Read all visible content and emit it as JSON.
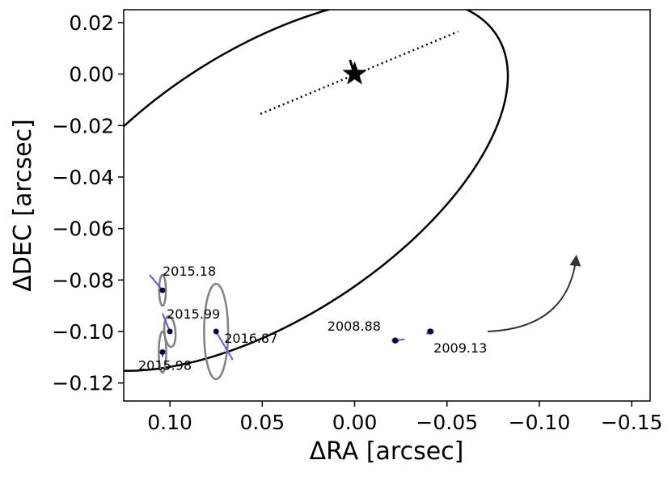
{
  "chart_data": {
    "type": "scatter",
    "xlabel": "ΔRA [arcsec]",
    "ylabel": "ΔDEC [arcsec]",
    "xlim": [
      0.125,
      -0.16
    ],
    "ylim": [
      -0.127,
      0.025
    ],
    "xticks": [
      0.1,
      0.05,
      0.0,
      -0.05,
      -0.1,
      -0.15
    ],
    "xtick_labels": [
      "0.10",
      "0.05",
      "0.00",
      "−0.05",
      "−0.10",
      "−0.15"
    ],
    "yticks": [
      0.02,
      0.0,
      -0.02,
      -0.04,
      -0.06,
      -0.08,
      -0.1,
      -0.12
    ],
    "ytick_labels": [
      "0.02",
      "0.00",
      "−0.02",
      "−0.04",
      "−0.06",
      "−0.08",
      "−0.10",
      "−0.12"
    ],
    "grid": false,
    "star": {
      "x": 0.0,
      "y": 0.0
    },
    "orbit": {
      "center_x": -0.0475,
      "center_y": -0.0428,
      "semi_major": 0.1385,
      "semi_minor": 0.0556,
      "angle_deg": 21.5
    },
    "line_of_nodes": {
      "x": [
        0.051,
        -0.056
      ],
      "y": [
        -0.0155,
        0.0165
      ]
    },
    "epochs": [
      {
        "label": "2015.18",
        "x": 0.104,
        "y": -0.084,
        "model_x": 0.111,
        "model_y": -0.078,
        "err_a": 0.0018,
        "err_b": 0.006,
        "err_angle_deg": 90
      },
      {
        "label": "2015.99",
        "x": 0.1,
        "y": -0.1,
        "model_x": 0.104,
        "model_y": -0.093,
        "err_a": 0.003,
        "err_b": 0.006,
        "err_angle_deg": 95
      },
      {
        "label": "2015.98",
        "x": 0.104,
        "y": -0.108,
        "model_x": 0.104,
        "model_y": -0.11,
        "err_a": 0.002,
        "err_b": 0.008,
        "err_angle_deg": 90
      },
      {
        "label": "2016.87",
        "x": 0.075,
        "y": -0.1,
        "model_x": 0.066,
        "model_y": -0.111,
        "err_a": 0.0065,
        "err_b": 0.0185,
        "err_angle_deg": 0
      },
      {
        "label": "2008.88",
        "x": -0.022,
        "y": -0.1035,
        "model_x": -0.027,
        "model_y": -0.103,
        "err_a": 0.0015,
        "err_b": 0.0008,
        "err_angle_deg": 0
      },
      {
        "label": "2009.13",
        "x": -0.041,
        "y": -0.1,
        "model_x": -0.039,
        "model_y": -0.101,
        "err_a": 0.0015,
        "err_b": 0.0008,
        "err_angle_deg": 0
      }
    ],
    "motion_arrow": {
      "x": [
        -0.072,
        -0.12
      ],
      "y": [
        -0.1,
        -0.071
      ]
    },
    "colors": {
      "orbit": "#000000",
      "point": "#00003a",
      "residual": "#5a5ae8",
      "error_ellipse": "#808080",
      "arrow": "#333333"
    }
  }
}
